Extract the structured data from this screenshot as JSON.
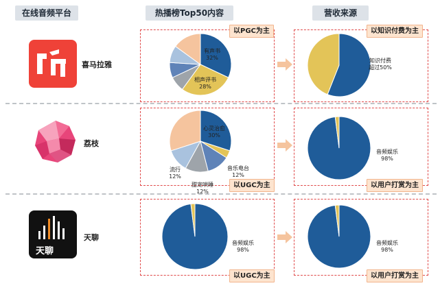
{
  "headers": {
    "platform": "在线音频平台",
    "content": "热播榜Top50内容",
    "revenue": "营收来源"
  },
  "platforms": [
    {
      "name": "喜马拉雅",
      "content_tag": "以PGC为主",
      "revenue_tag": "以知识付费为主",
      "content_pie": {
        "slices": [
          {
            "label": "有声书",
            "value": 32,
            "pct": "32%",
            "color": "#1f5c99"
          },
          {
            "label": "相声评书",
            "value": 28,
            "pct": "28%",
            "color": "#e3c458"
          },
          {
            "label": "",
            "value": 8,
            "pct": "",
            "color": "#9ea4aa"
          },
          {
            "label": "",
            "value": 8,
            "pct": "",
            "color": "#5f83b8"
          },
          {
            "label": "",
            "value": 9,
            "pct": "",
            "color": "#a9c2de"
          },
          {
            "label": "",
            "value": 15,
            "pct": "",
            "color": "#f5c49e"
          }
        ]
      },
      "revenue_pie": {
        "slices": [
          {
            "label": "知识付费超过50%",
            "value": 56,
            "color": "#1f5c99"
          },
          {
            "label": "",
            "value": 44,
            "color": "#e3c458"
          }
        ]
      }
    },
    {
      "name": "荔枝",
      "content_tag": "以UGC为主",
      "revenue_tag": "以用户打赏为主",
      "content_pie": {
        "slices": [
          {
            "label": "心灵治愈",
            "value": 30,
            "pct": "30%",
            "color": "#1f5c99"
          },
          {
            "label": "",
            "value": 4,
            "pct": "",
            "color": "#e3c458"
          },
          {
            "label": "音乐电台",
            "value": 12,
            "pct": "12%",
            "color": "#5f83b8"
          },
          {
            "label": "甜宠哄睡",
            "value": 12,
            "pct": "12%",
            "color": "#9ea4aa"
          },
          {
            "label": "流行",
            "value": 12,
            "pct": "12%",
            "color": "#a9c2de"
          },
          {
            "label": "",
            "value": 30,
            "pct": "",
            "color": "#f5c49e"
          }
        ]
      },
      "revenue_pie": {
        "slices": [
          {
            "label": "音频娱乐",
            "value": 98,
            "pct": "98%",
            "color": "#1f5c99"
          },
          {
            "label": "",
            "value": 2,
            "pct": "",
            "color": "#e3c458"
          }
        ]
      }
    },
    {
      "name": "天聊",
      "logo_text": "天聊",
      "content_tag": "以UGC为主",
      "revenue_tag": "以用户打赏为主",
      "content_pie": {
        "slices": [
          {
            "label": "音频娱乐",
            "value": 98,
            "pct": "98%",
            "color": "#1f5c99"
          },
          {
            "label": "",
            "value": 2,
            "pct": "",
            "color": "#e3c458"
          }
        ]
      },
      "revenue_pie": {
        "slices": [
          {
            "label": "音频娱乐",
            "value": 98,
            "pct": "98%",
            "color": "#1f5c99"
          },
          {
            "label": "",
            "value": 2,
            "pct": "",
            "color": "#e3c458"
          }
        ]
      }
    }
  ]
}
